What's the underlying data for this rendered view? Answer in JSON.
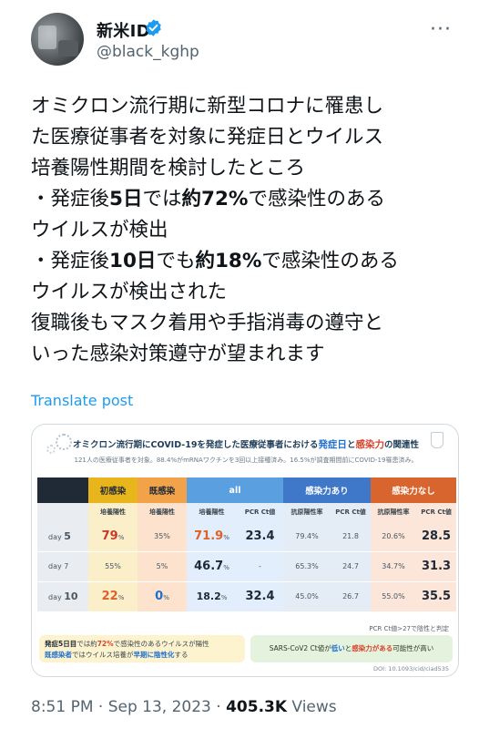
{
  "author": {
    "name": "新米ID",
    "handle": "@black_kghp",
    "verified_icon": "verified-badge-icon",
    "more_icon": "more-icon"
  },
  "post": {
    "lines": [
      [
        "オミクロン流行期に新型コロナに罹患し",
        "",
        "",
        "",
        ""
      ],
      [
        "た医療従事者を対象に発症日とウイルス",
        "",
        "",
        "",
        ""
      ],
      [
        "培養陽性期間を検討したところ",
        "",
        "",
        "",
        ""
      ],
      [
        "・発症後",
        "5日",
        "では",
        "約72%",
        "で感染性のある"
      ],
      [
        "ウイルスが検出",
        "",
        "",
        "",
        ""
      ],
      [
        "・発症後",
        "10日",
        "でも",
        "約18%",
        "で感染性のある"
      ],
      [
        "ウイルスが検出された",
        "",
        "",
        "",
        ""
      ],
      [
        "復職後もマスク着用や手指消毒の遵守と",
        "",
        "",
        "",
        ""
      ],
      [
        "いった感染対策遵守が望まれます",
        "",
        "",
        "",
        ""
      ]
    ],
    "translate_label": "Translate post"
  },
  "figure": {
    "title_pre": "オミクロン流行期にCOVID-19を発症した医療従事者における",
    "title_hl1": "発症日",
    "title_mid": "と",
    "title_hl2": "感染力",
    "title_post": "の関連性",
    "subtitle": "121人の医療従事者を対象。88.4%がmRNAワクチンを3回以上接種済み。16.5%が調査期間前にCOVID-19罹患済み。",
    "headers": [
      "",
      "初感染",
      "既感染",
      "all",
      "感染力あり",
      "感染力なし"
    ],
    "subheaders": [
      "",
      "培養陽性",
      "培養陽性",
      "培養陽性",
      "PCR Ct値",
      "抗原陽性率",
      "PCR Ct値",
      "抗原陽性率",
      "PCR Ct値"
    ],
    "rows": [
      {
        "day_label": "day ",
        "day_num": "5",
        "init": "79",
        "init_unit": "%",
        "prev": "35%",
        "all": "71.9",
        "all_unit": "%",
        "all_ct": "23.4",
        "inf_ag": "79.4%",
        "inf_ct": "21.8",
        "noinf_ag": "20.6%",
        "noinf_ct": "28.5"
      },
      {
        "day_label": "day 7",
        "day_num": "",
        "init": "55%",
        "init_unit": "",
        "prev": "5%",
        "all": "46.7",
        "all_unit": "%",
        "all_ct": "-",
        "inf_ag": "65.3%",
        "inf_ct": "24.7",
        "noinf_ag": "34.7%",
        "noinf_ct": "31.3"
      },
      {
        "day_label": "day ",
        "day_num": "10",
        "init": "22",
        "init_unit": "%",
        "prev": "0",
        "prev_unit": "%",
        "all": "18.2",
        "all_unit": "%",
        "all_ct": "32.4",
        "inf_ag": "45.0%",
        "inf_ct": "26.7",
        "noinf_ag": "55.0%",
        "noinf_ct": "35.5"
      }
    ],
    "note": "PCR Ct値>27で陰性と判定",
    "conclusion1": {
      "a1": "発症5日目",
      "a2": "では約",
      "a3": "72%",
      "a4": "で感染性のあるウイルスが陽性",
      "b1": "既感染者",
      "b2": "ではウイルス培養が",
      "b3": "早期に陰性化",
      "b4": "する"
    },
    "conclusion2": {
      "p1": "SARS-CoV2 Ct値が",
      "p2": "低い",
      "p3": "と",
      "p4": "感染力がある",
      "p5": "可能性が高い"
    },
    "doi": "DOI: 10.1093/cid/ciad535"
  },
  "meta": {
    "time": "8:51 PM · Sep 13, 2023 · ",
    "views_count": "405.3K",
    "views_label": " Views"
  }
}
